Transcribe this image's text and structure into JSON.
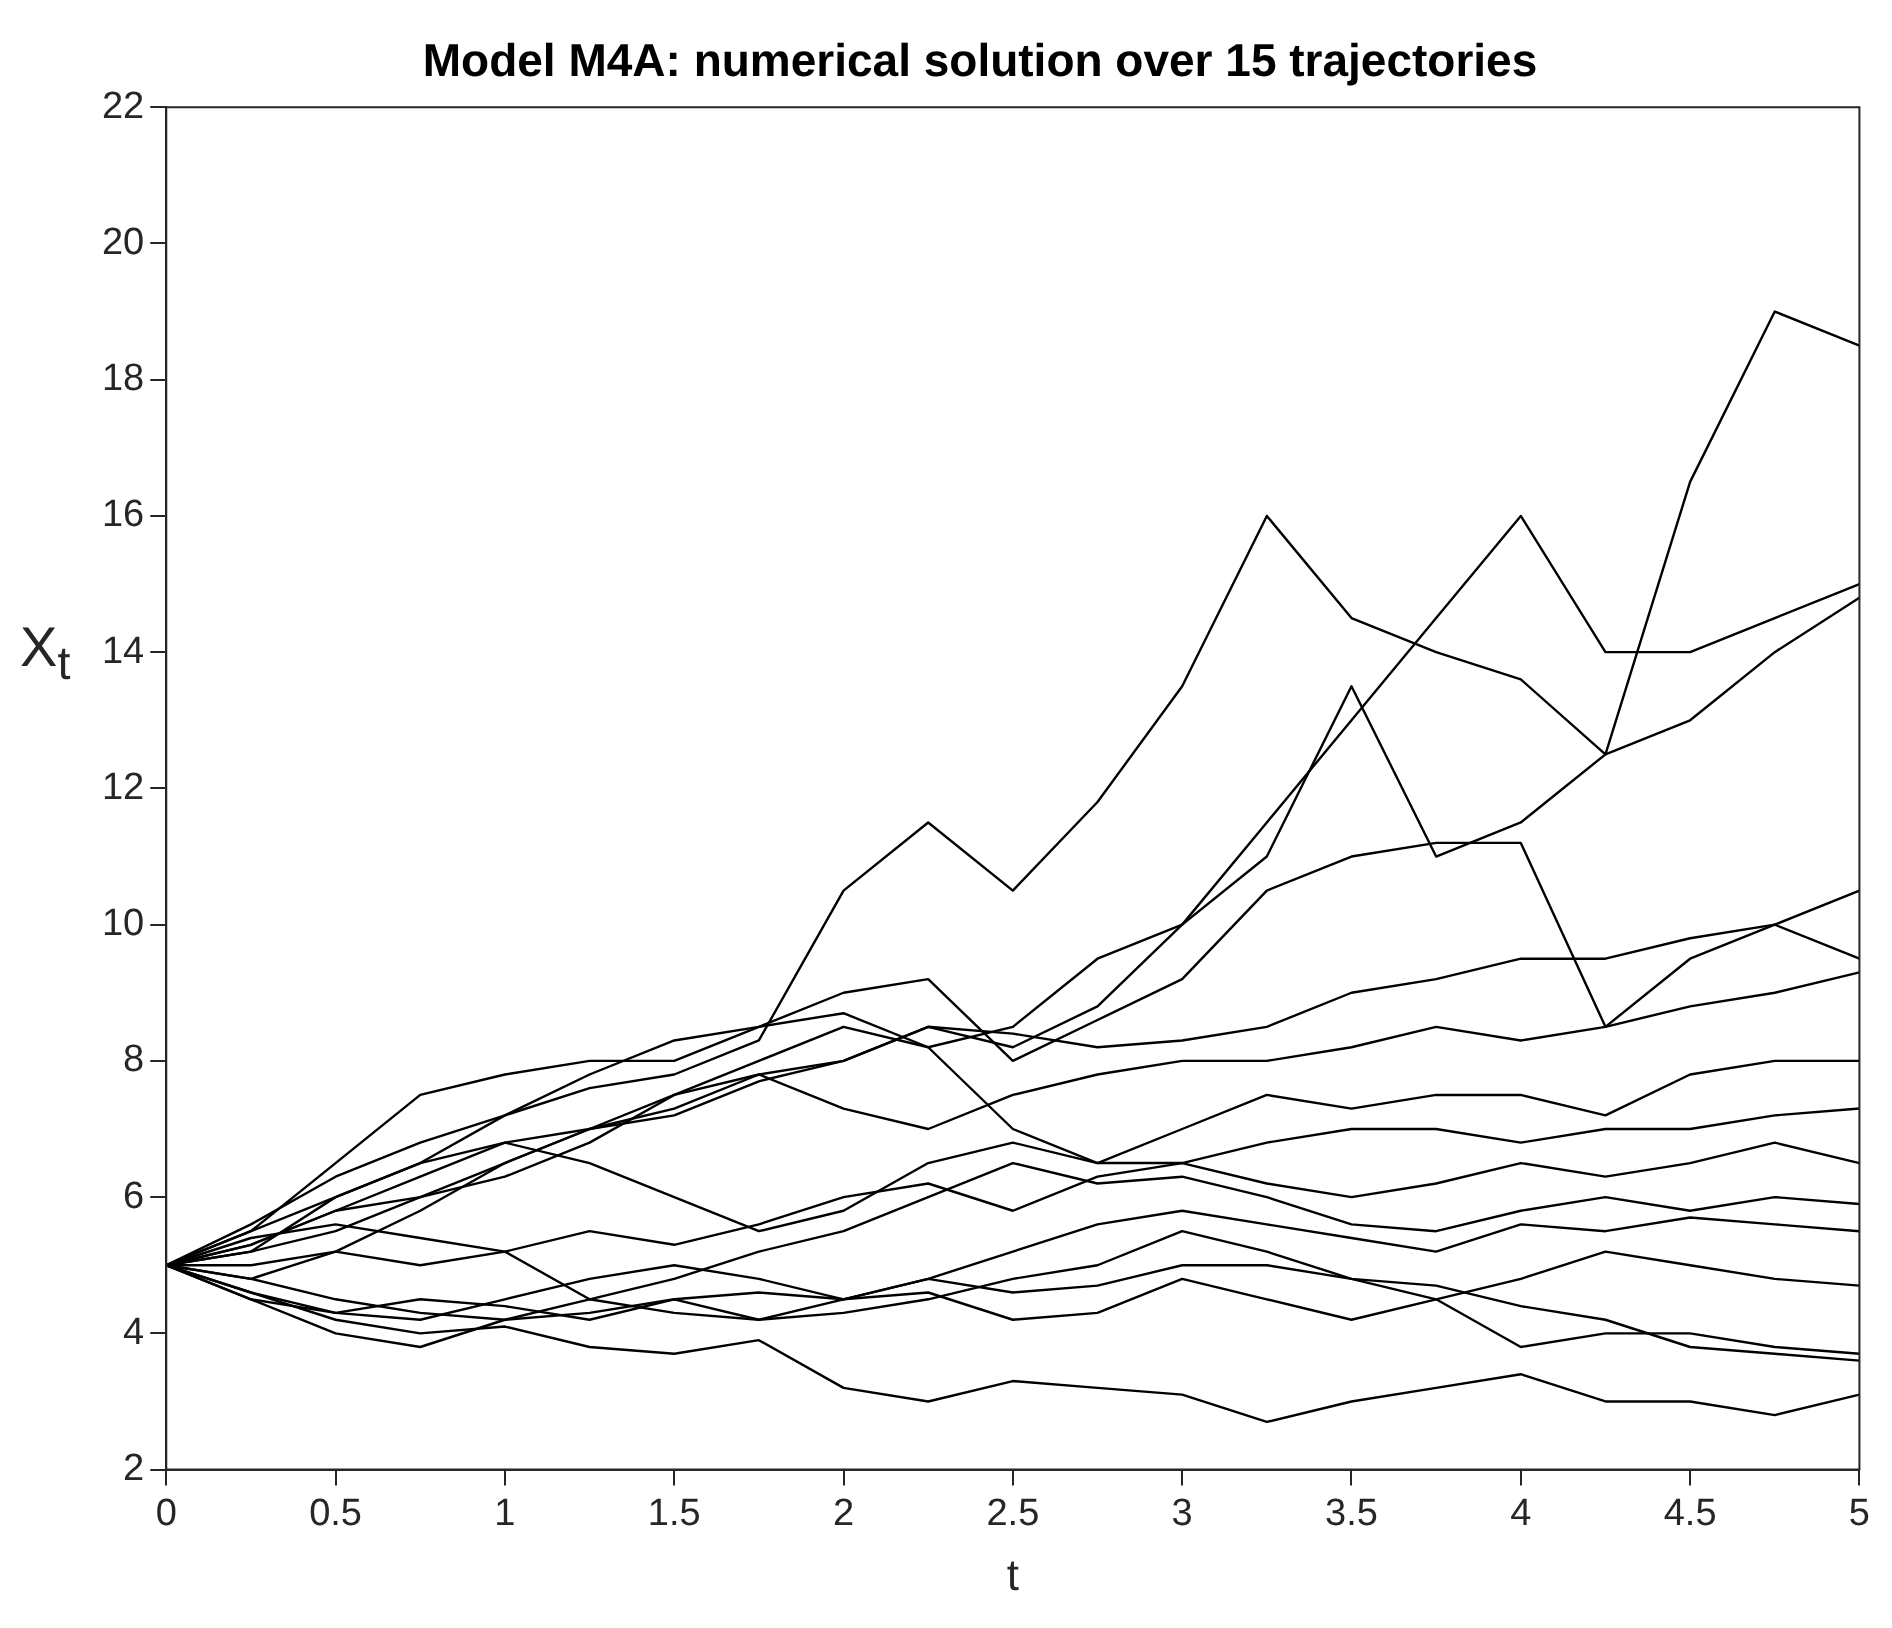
{
  "chart_data": {
    "type": "line",
    "title": "Model M4A: numerical solution over 15 trajectories",
    "xlabel": "t",
    "ylabel": "X$_{t}$",
    "x": [
      0,
      0.25,
      0.5,
      0.75,
      1,
      1.25,
      1.5,
      1.75,
      2,
      2.25,
      2.5,
      2.75,
      3,
      3.25,
      3.5,
      3.75,
      4,
      4.25,
      4.5,
      4.75,
      5
    ],
    "xlim": [
      0,
      5
    ],
    "xticks": [
      0,
      0.5,
      1,
      1.5,
      2,
      2.5,
      3,
      3.5,
      4,
      4.5,
      5
    ],
    "ylim": [
      2,
      22
    ],
    "yticks": [
      2,
      4,
      6,
      8,
      10,
      12,
      14,
      16,
      18,
      20,
      22
    ],
    "grid": false,
    "legend": false,
    "marker": "none",
    "line_style": "solid",
    "series": [
      {
        "color": "#000000",
        "values": [
          5,
          5.6,
          6.3,
          6.8,
          7.2,
          7.6,
          7.8,
          8.3,
          10.5,
          11.5,
          10.5,
          11.8,
          13.5,
          16,
          14.5,
          14,
          13.6,
          12.5,
          16.5,
          19,
          18.5
        ]
      },
      {
        "color": "#000000",
        "values": [
          5,
          5.3,
          5.8,
          6.3,
          6.8,
          7,
          7.5,
          8,
          8.5,
          8.2,
          8.5,
          9.5,
          10,
          11.5,
          13,
          14.5,
          16,
          14,
          14,
          14.5,
          15
        ]
      },
      {
        "color": "#000000",
        "values": [
          5,
          5.2,
          5.5,
          6,
          6.3,
          6.8,
          7.5,
          7.8,
          8,
          8.5,
          8.2,
          8.8,
          10,
          11,
          13.5,
          11,
          11.5,
          12.5,
          13,
          14,
          14.8
        ]
      },
      {
        "color": "#000000",
        "values": [
          5,
          5.5,
          6,
          6.5,
          7.2,
          7.8,
          8.3,
          8.5,
          9,
          9.2,
          8,
          8.6,
          9.2,
          10.5,
          11,
          11.2,
          11.2,
          8.5,
          9.5,
          10,
          10.5
        ]
      },
      {
        "color": "#000000",
        "values": [
          5,
          5.3,
          5.8,
          6,
          6.5,
          7,
          7.2,
          7.7,
          8,
          8.5,
          8.4,
          8.2,
          8.3,
          8.5,
          9,
          9.2,
          9.5,
          9.5,
          9.8,
          10,
          9.5
        ]
      },
      {
        "color": "#000000",
        "values": [
          5,
          4.8,
          5.2,
          5.8,
          6.5,
          7,
          7.3,
          7.8,
          7.3,
          7,
          7.5,
          7.8,
          8,
          8,
          8.2,
          8.5,
          8.3,
          8.5,
          8.8,
          9,
          9.3
        ]
      },
      {
        "color": "#000000",
        "values": [
          5,
          5.5,
          6.5,
          7.5,
          7.8,
          8,
          8,
          8.5,
          8.7,
          8.2,
          7,
          6.5,
          7,
          7.5,
          7.3,
          7.5,
          7.5,
          7.2,
          7.8,
          8,
          8
        ]
      },
      {
        "color": "#000000",
        "values": [
          5,
          5.2,
          6,
          6.5,
          6.8,
          6.5,
          6,
          5.5,
          5.8,
          6.5,
          6.8,
          6.5,
          6.5,
          6.8,
          7,
          7,
          6.8,
          7,
          7,
          7.2,
          7.3
        ]
      },
      {
        "color": "#000000",
        "values": [
          5,
          5.4,
          5.6,
          5.4,
          5.2,
          5.5,
          5.3,
          5.6,
          6,
          6.2,
          5.8,
          6.3,
          6.5,
          6.2,
          6,
          6.2,
          6.5,
          6.3,
          6.5,
          6.8,
          6.5
        ]
      },
      {
        "color": "#000000",
        "values": [
          5,
          5,
          5.2,
          5,
          5.2,
          4.5,
          4.8,
          5.2,
          5.5,
          6,
          6.5,
          6.2,
          6.3,
          6,
          5.6,
          5.5,
          5.8,
          6,
          5.8,
          6,
          5.9
        ]
      },
      {
        "color": "#000000",
        "values": [
          5,
          4.8,
          4.5,
          4.3,
          4.2,
          4.3,
          4.5,
          4.6,
          4.5,
          4.8,
          5.2,
          5.6,
          5.8,
          5.6,
          5.4,
          5.2,
          5.6,
          5.5,
          5.7,
          5.6,
          5.5
        ]
      },
      {
        "color": "#000000",
        "values": [
          5,
          4.5,
          4.3,
          4.5,
          4.4,
          4.2,
          4.5,
          4.2,
          4.3,
          4.5,
          4.8,
          5,
          5.5,
          5.2,
          4.8,
          4.5,
          4.8,
          5.2,
          5,
          4.8,
          4.7
        ]
      },
      {
        "color": "#000000",
        "values": [
          5,
          4.6,
          4.3,
          4.2,
          4.5,
          4.8,
          5,
          4.8,
          4.5,
          4.6,
          4.2,
          4.3,
          4.8,
          4.5,
          4.2,
          4.5,
          3.8,
          4,
          4,
          3.8,
          3.7
        ]
      },
      {
        "color": "#000000",
        "values": [
          5,
          4.5,
          4,
          3.8,
          4.2,
          4.5,
          4.3,
          4.2,
          4.5,
          4.8,
          4.6,
          4.7,
          5,
          5,
          4.8,
          4.7,
          4.4,
          4.2,
          3.8,
          3.7,
          3.6
        ]
      },
      {
        "color": "#000000",
        "values": [
          5,
          4.6,
          4.2,
          4,
          4.1,
          3.8,
          3.7,
          3.9,
          3.2,
          3,
          3.3,
          3.2,
          3.1,
          2.7,
          3,
          3.2,
          3.4,
          3,
          3,
          2.8,
          3.1
        ]
      }
    ]
  }
}
